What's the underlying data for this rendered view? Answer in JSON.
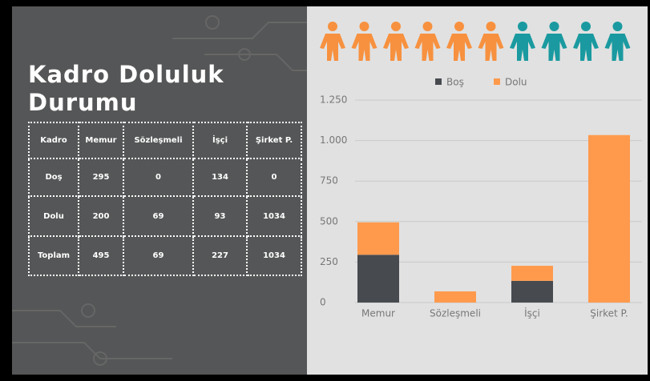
{
  "title": "Kadro Doluluk Durumu",
  "table": {
    "header": [
      "Kadro",
      "Memur",
      "Sözleşmeli",
      "İşçi",
      "Şirket P."
    ],
    "rows": [
      [
        "Doş",
        295,
        0,
        134,
        0
      ],
      [
        "Dolu",
        200,
        69,
        93,
        1034
      ],
      [
        "Toplam",
        495,
        69,
        227,
        1034
      ]
    ]
  },
  "chart_data": {
    "type": "stacked_bar",
    "categories": [
      "Memur",
      "Sözleşmeli",
      "İşçi",
      "Şirket P."
    ],
    "series": [
      {
        "name": "Boş",
        "color": "#474b50",
        "values": [
          295,
          0,
          134,
          0
        ]
      },
      {
        "name": "Dolu",
        "color": "#ff9a4d",
        "values": [
          200,
          69,
          93,
          1034
        ]
      }
    ],
    "ylim": [
      0,
      1250
    ],
    "yticks": [
      0,
      250,
      500,
      750,
      {
        "value": 1000,
        "label": "1.000"
      },
      {
        "value": 1250,
        "label": "1.250"
      }
    ],
    "grid": true,
    "legend": "top"
  }
}
